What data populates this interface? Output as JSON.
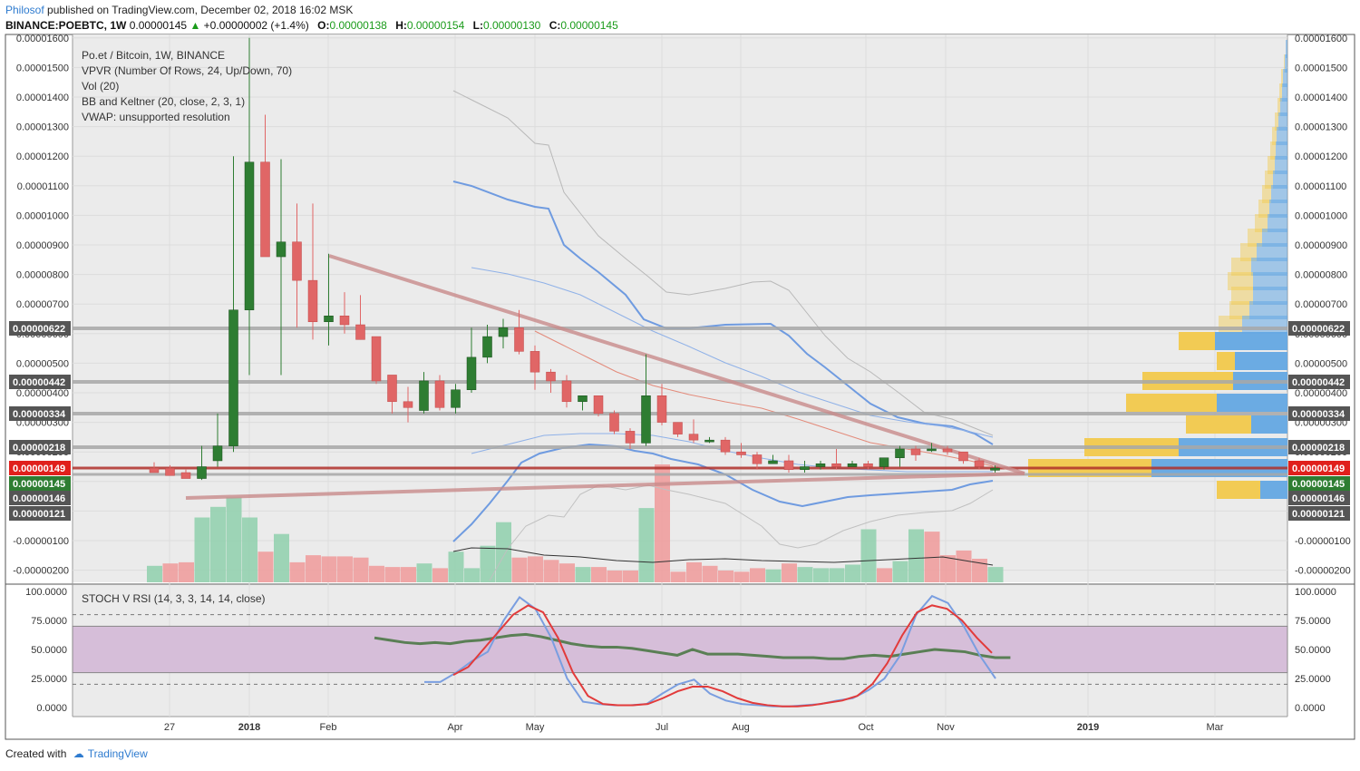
{
  "header": {
    "author": "Philosof",
    "published": "published on TradingView.com, December 02, 2018 16:02 MSK",
    "symbol": "BINANCE:POEBTC, 1W",
    "price": "0.00000145",
    "change": "+0.00000002 (+1.4%)",
    "o_label": "O:",
    "o": "0.00000138",
    "h_label": "H:",
    "h": "0.00000154",
    "l_label": "L:",
    "l": "0.00000130",
    "c_label": "C:",
    "c": "0.00000145"
  },
  "legend": [
    "Po.et / Bitcoin, 1W, BINANCE",
    "VPVR (Number Of Rows, 24, Up/Down, 70)",
    "Vol (20)",
    "BB and Keltner (20, close, 2, 3, 1)",
    "VWAP: unsupported resolution"
  ],
  "footer": {
    "created": "Created with",
    "brand": "TradingView"
  },
  "colors": {
    "up": "#2e7d32",
    "down": "#e06666",
    "grid": "#e0e0e0",
    "bg": "#ebebeb",
    "rsi_band": "#d6bed9"
  },
  "chart_data": {
    "type": "candlestick",
    "title": "Po.et / Bitcoin, 1W, BINANCE",
    "y_ticks": [
      "0.00001600",
      "0.00001500",
      "0.00001400",
      "0.00001300",
      "0.00001200",
      "0.00001100",
      "0.00001000",
      "0.00000900",
      "0.00000800",
      "0.00000700",
      "0.00000600",
      "0.00000500",
      "0.00000400",
      "0.00000300",
      "0.00000200",
      "0.00000100",
      "0",
      "-0.00000100",
      "-0.00000200"
    ],
    "x_labels": [
      "27",
      "2018",
      "Feb",
      "Apr",
      "May",
      "Jul",
      "Aug",
      "Oct",
      "Nov",
      "2019",
      "Mar"
    ],
    "left_price_tags": [
      "0.00000622",
      "0.00000442",
      "0.00000334",
      "0.00000218",
      "0.00000149",
      "0.00000145",
      "0.00000146",
      "0.00000121"
    ],
    "right_price_tags": [
      "0.00000622",
      "0.00000442",
      "0.00000334",
      "0.00000218",
      "0.00000149",
      "0.00000145",
      "0.00000146",
      "0.00000121"
    ],
    "candles_ohlc": [
      [
        1.45,
        1.65,
        1.35,
        1.3
      ],
      [
        1.45,
        1.55,
        1.3,
        1.2
      ],
      [
        1.3,
        1.4,
        1.2,
        1.1
      ],
      [
        1.1,
        2.2,
        1.05,
        1.5
      ],
      [
        1.7,
        3.3,
        1.5,
        2.2
      ],
      [
        2.2,
        12.0,
        2.0,
        6.8
      ],
      [
        6.8,
        16.0,
        4.6,
        11.8
      ],
      [
        11.8,
        13.4,
        8.6,
        8.6
      ],
      [
        8.6,
        11.9,
        4.6,
        9.1
      ],
      [
        9.1,
        10.4,
        6.2,
        7.8
      ],
      [
        7.8,
        10.4,
        5.8,
        6.4
      ],
      [
        6.4,
        8.7,
        5.6,
        6.6
      ],
      [
        6.6,
        7.4,
        6.0,
        6.3
      ],
      [
        6.3,
        7.3,
        5.8,
        5.8
      ],
      [
        5.9,
        5.9,
        4.3,
        4.4
      ],
      [
        4.6,
        4.6,
        3.3,
        3.7
      ],
      [
        3.7,
        4.2,
        3.0,
        3.5
      ],
      [
        3.4,
        4.7,
        3.3,
        4.4
      ],
      [
        4.4,
        4.6,
        3.4,
        3.5
      ],
      [
        3.5,
        4.3,
        3.3,
        4.1
      ],
      [
        4.1,
        6.2,
        4.0,
        5.2
      ],
      [
        5.2,
        6.3,
        5.0,
        5.9
      ],
      [
        5.9,
        6.5,
        5.5,
        6.2
      ],
      [
        6.2,
        6.8,
        5.3,
        5.4
      ],
      [
        5.4,
        5.6,
        4.1,
        4.7
      ],
      [
        4.7,
        4.8,
        4.0,
        4.4
      ],
      [
        4.4,
        4.6,
        3.5,
        3.7
      ],
      [
        3.7,
        3.9,
        3.4,
        3.9
      ],
      [
        3.9,
        3.9,
        3.2,
        3.3
      ],
      [
        3.3,
        3.4,
        2.6,
        2.7
      ],
      [
        2.7,
        2.8,
        2.1,
        2.3
      ],
      [
        2.3,
        5.3,
        2.2,
        3.9
      ],
      [
        3.9,
        4.3,
        2.9,
        3.0
      ],
      [
        3.0,
        3.0,
        2.5,
        2.6
      ],
      [
        2.6,
        3.1,
        2.3,
        2.4
      ],
      [
        2.4,
        2.5,
        2.3,
        2.4
      ],
      [
        2.4,
        2.5,
        1.9,
        2.0
      ],
      [
        2.0,
        2.3,
        1.8,
        1.9
      ],
      [
        1.9,
        2.0,
        1.4,
        1.6
      ],
      [
        1.6,
        1.9,
        1.6,
        1.7
      ],
      [
        1.7,
        1.9,
        1.3,
        1.4
      ],
      [
        1.4,
        1.7,
        1.3,
        1.5
      ],
      [
        1.5,
        1.7,
        1.4,
        1.6
      ],
      [
        1.6,
        2.1,
        1.4,
        1.5
      ],
      [
        1.5,
        1.7,
        1.5,
        1.6
      ],
      [
        1.6,
        1.7,
        1.4,
        1.5
      ],
      [
        1.5,
        1.8,
        1.4,
        1.8
      ],
      [
        1.8,
        2.2,
        1.5,
        2.1
      ],
      [
        2.1,
        2.2,
        1.7,
        1.9
      ],
      [
        2.1,
        2.3,
        2.0,
        2.1
      ],
      [
        2.1,
        2.2,
        1.9,
        2.0
      ],
      [
        2.0,
        2.0,
        1.6,
        1.7
      ],
      [
        1.7,
        1.8,
        1.4,
        1.5
      ],
      [
        1.38,
        1.54,
        1.3,
        1.45
      ]
    ],
    "volume_up": [
      true,
      false,
      false,
      true,
      true,
      true,
      true,
      false,
      true,
      false,
      false,
      false,
      false,
      false,
      false,
      false,
      false,
      true,
      false,
      true,
      true,
      true,
      true,
      false,
      false,
      false,
      false,
      true,
      false,
      false,
      false,
      true,
      false,
      false,
      false,
      false,
      false,
      false,
      false,
      true,
      false,
      true,
      true,
      true,
      true,
      true,
      false,
      true,
      true,
      false,
      false,
      false,
      false,
      true
    ],
    "volume_rel": [
      0.14,
      0.16,
      0.17,
      0.55,
      0.64,
      0.72,
      0.55,
      0.26,
      0.41,
      0.17,
      0.23,
      0.22,
      0.22,
      0.21,
      0.14,
      0.13,
      0.13,
      0.16,
      0.12,
      0.26,
      0.12,
      0.31,
      0.51,
      0.21,
      0.22,
      0.19,
      0.16,
      0.13,
      0.13,
      0.1,
      0.1,
      0.63,
      1.0,
      0.09,
      0.17,
      0.14,
      0.1,
      0.09,
      0.12,
      0.11,
      0.16,
      0.13,
      0.12,
      0.12,
      0.15,
      0.45,
      0.12,
      0.18,
      0.45,
      0.43,
      0.23,
      0.27,
      0.2,
      0.13
    ],
    "stoch_rsi": {
      "label": "STOCH V RSI (14, 3, 3, 14, 14, close)",
      "y_ticks": [
        "100.0000",
        "75.0000",
        "50.0000",
        "25.0000",
        "0.0000"
      ],
      "band": [
        30,
        70
      ],
      "dashed": [
        20,
        80
      ],
      "k": [
        22,
        22,
        30,
        40,
        48,
        75,
        95,
        85,
        60,
        25,
        5,
        3,
        2,
        2,
        3,
        12,
        20,
        24,
        12,
        6,
        3,
        2,
        1,
        1,
        2,
        3,
        6,
        8,
        15,
        25,
        45,
        80,
        96,
        90,
        70,
        45,
        25
      ],
      "d": [
        28,
        35,
        50,
        65,
        80,
        88,
        82,
        60,
        30,
        10,
        3,
        2,
        2,
        3,
        8,
        14,
        18,
        18,
        14,
        8,
        4,
        2,
        1,
        1,
        2,
        4,
        6,
        10,
        20,
        38,
        62,
        82,
        88,
        85,
        75,
        60,
        47
      ],
      "rsi": [
        60,
        58,
        56,
        55,
        56,
        55,
        57,
        58,
        60,
        62,
        63,
        61,
        58,
        55,
        53,
        52,
        52,
        51,
        49,
        47,
        45,
        50,
        46,
        46,
        46,
        45,
        44,
        43,
        43,
        43,
        42,
        42,
        44,
        45,
        44,
        46,
        48,
        50,
        49,
        48,
        45,
        43,
        43
      ]
    }
  }
}
